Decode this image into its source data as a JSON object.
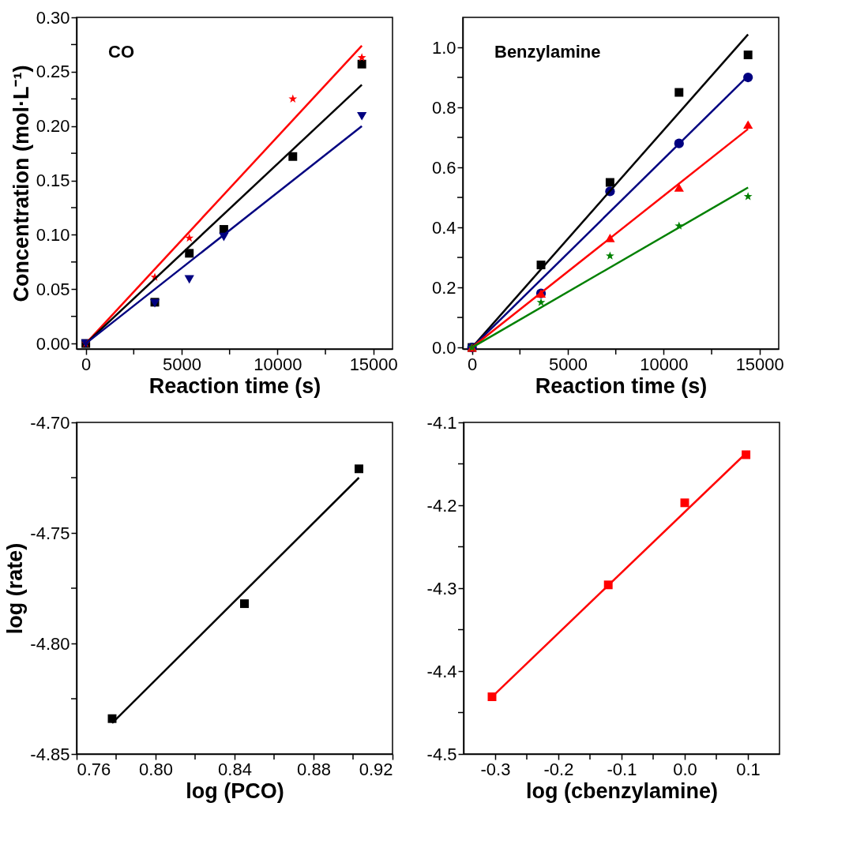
{
  "chart_data": [
    {
      "type": "scatter",
      "xlabel": "Reaction time (s)",
      "ylabel": "Concentration (mol·L⁻¹)",
      "annotations": [
        "CO"
      ],
      "xlim": [
        -480,
        16000
      ],
      "ylim": [
        -0.005,
        0.3
      ],
      "xticks": [
        0,
        {
          "value": 2500,
          "label": null
        },
        5000,
        {
          "value": 7500,
          "label": null
        },
        10000,
        {
          "value": 12500,
          "label": null
        },
        15000
      ],
      "yticks": [
        {
          "value": 0,
          "label": "0.00"
        },
        {
          "value": 0.025,
          "label": null
        },
        {
          "value": 0.05,
          "label": "0.05"
        },
        {
          "value": 0.075,
          "label": null
        },
        {
          "value": 0.1,
          "label": "0.10"
        },
        {
          "value": 0.125,
          "label": null
        },
        {
          "value": 0.15,
          "label": "0.15"
        },
        {
          "value": 0.175,
          "label": null
        },
        {
          "value": 0.2,
          "label": "0.20"
        },
        {
          "value": 0.225,
          "label": null
        },
        {
          "value": 0.25,
          "label": "0.25"
        },
        {
          "value": 0.275,
          "label": null
        },
        {
          "value": 0.3,
          "label": "0.30"
        }
      ],
      "grid": false,
      "series": [
        {
          "type": "scatter",
          "marker": "square",
          "color": "#000000",
          "x": [
            0,
            3600,
            5400,
            7200,
            10800,
            14400
          ],
          "values": [
            0,
            0.038,
            0.083,
            0.105,
            0.172,
            0.257
          ]
        },
        {
          "type": "scatter",
          "marker": "star",
          "color": "#ff0000",
          "x": [
            0,
            3600,
            5400,
            10800,
            14400
          ],
          "values": [
            0,
            0.061,
            0.097,
            0.225,
            0.263
          ]
        },
        {
          "type": "scatter",
          "marker": "triangle-down",
          "color": "#000080",
          "x": [
            0,
            3600,
            5400,
            7200,
            14400
          ],
          "values": [
            0,
            0.037,
            0.059,
            0.098,
            0.209
          ]
        },
        {
          "type": "line",
          "color": "#ff0000",
          "x": [
            0,
            14400
          ],
          "values": [
            0,
            0.274
          ]
        },
        {
          "type": "line",
          "color": "#000000",
          "x": [
            0,
            14400
          ],
          "values": [
            0,
            0.238
          ]
        },
        {
          "type": "line",
          "color": "#000080",
          "x": [
            0,
            14400
          ],
          "values": [
            0,
            0.2
          ]
        }
      ]
    },
    {
      "type": "scatter",
      "xlabel": "Reaction time (s)",
      "annotations": [
        "Benzylamine"
      ],
      "xlim": [
        -480,
        16000
      ],
      "ylim": [
        -0.005,
        1.1
      ],
      "xticks": [
        0,
        {
          "value": 2500,
          "label": null
        },
        5000,
        {
          "value": 7500,
          "label": null
        },
        10000,
        {
          "value": 12500,
          "label": null
        },
        15000
      ],
      "yticks": [
        {
          "value": 0,
          "label": "0.0"
        },
        {
          "value": 0.1,
          "label": null
        },
        {
          "value": 0.2,
          "label": "0.2"
        },
        {
          "value": 0.3,
          "label": null
        },
        {
          "value": 0.4,
          "label": "0.4"
        },
        {
          "value": 0.5,
          "label": null
        },
        {
          "value": 0.6,
          "label": "0.6"
        },
        {
          "value": 0.7,
          "label": null
        },
        {
          "value": 0.8,
          "label": "0.8"
        },
        {
          "value": 0.9,
          "label": null
        },
        {
          "value": 1.0,
          "label": "1.0"
        }
      ],
      "grid": false,
      "series": [
        {
          "type": "scatter",
          "marker": "square",
          "color": "#000000",
          "x": [
            0,
            3600,
            7200,
            10800,
            14400
          ],
          "values": [
            0,
            0.275,
            0.55,
            0.85,
            0.975
          ]
        },
        {
          "type": "scatter",
          "marker": "circle",
          "color": "#000080",
          "x": [
            0,
            3600,
            7200,
            10800,
            14400
          ],
          "values": [
            0,
            0.18,
            0.52,
            0.68,
            0.9
          ]
        },
        {
          "type": "scatter",
          "marker": "triangle",
          "color": "#ff0000",
          "x": [
            0,
            3600,
            7200,
            10800,
            14400
          ],
          "values": [
            0,
            0.18,
            0.365,
            0.533,
            0.743
          ]
        },
        {
          "type": "scatter",
          "marker": "star",
          "color": "#008000",
          "x": [
            0,
            3600,
            7200,
            10800,
            14400
          ],
          "values": [
            0,
            0.15,
            0.305,
            0.405,
            0.503
          ]
        },
        {
          "type": "line",
          "color": "#000000",
          "x": [
            0,
            14400
          ],
          "values": [
            0,
            1.043
          ]
        },
        {
          "type": "line",
          "color": "#000080",
          "x": [
            0,
            14400
          ],
          "values": [
            0,
            0.905
          ]
        },
        {
          "type": "line",
          "color": "#ff0000",
          "x": [
            0,
            14400
          ],
          "values": [
            0,
            0.728
          ]
        },
        {
          "type": "line",
          "color": "#008000",
          "x": [
            0,
            14400
          ],
          "values": [
            0,
            0.533
          ]
        }
      ]
    },
    {
      "type": "scatter",
      "xlabel": "log (PCO)",
      "ylabel": "log (rate)",
      "xlim": [
        0.76,
        0.92
      ],
      "ylim": [
        -4.85,
        -4.7
      ],
      "xticks": [
        {
          "value": 0.76,
          "label": "0.76"
        },
        {
          "value": 0.78,
          "label": null
        },
        {
          "value": 0.8,
          "label": "0.80"
        },
        {
          "value": 0.82,
          "label": null
        },
        {
          "value": 0.84,
          "label": "0.84"
        },
        {
          "value": 0.86,
          "label": null
        },
        {
          "value": 0.88,
          "label": "0.88"
        },
        {
          "value": 0.9,
          "label": null
        },
        {
          "value": 0.92,
          "label": "0.92"
        }
      ],
      "yticks": [
        {
          "value": -4.85,
          "label": "-4.85"
        },
        {
          "value": -4.825,
          "label": null
        },
        {
          "value": -4.8,
          "label": "-4.80"
        },
        {
          "value": -4.775,
          "label": null
        },
        {
          "value": -4.75,
          "label": "-4.75"
        },
        {
          "value": -4.725,
          "label": null
        },
        {
          "value": -4.7,
          "label": "-4.70"
        }
      ],
      "grid": false,
      "series": [
        {
          "type": "scatter",
          "marker": "square",
          "color": "#000000",
          "x": [
            0.778,
            0.845,
            0.903
          ],
          "values": [
            -4.834,
            -4.782,
            -4.721
          ]
        },
        {
          "type": "line",
          "color": "#000000",
          "x": [
            0.778,
            0.903
          ],
          "values": [
            -4.836,
            -4.725
          ]
        }
      ]
    },
    {
      "type": "scatter",
      "xlabel": "log (cbenzylamine)",
      "xlim": [
        -0.35,
        0.15
      ],
      "ylim": [
        -4.5,
        -4.1
      ],
      "xticks": [
        {
          "value": -0.3,
          "label": "-0.3"
        },
        {
          "value": -0.25,
          "label": null
        },
        {
          "value": -0.2,
          "label": "-0.2"
        },
        {
          "value": -0.15,
          "label": null
        },
        {
          "value": -0.1,
          "label": "-0.1"
        },
        {
          "value": -0.05,
          "label": null
        },
        {
          "value": 0,
          "label": "0.0"
        },
        {
          "value": 0.05,
          "label": null
        },
        {
          "value": 0.1,
          "label": "0.1"
        }
      ],
      "yticks": [
        {
          "value": -4.5,
          "label": "-4.5"
        },
        {
          "value": -4.45,
          "label": null
        },
        {
          "value": -4.4,
          "label": "-4.4"
        },
        {
          "value": -4.35,
          "label": null
        },
        {
          "value": -4.3,
          "label": "-4.3"
        },
        {
          "value": -4.25,
          "label": null
        },
        {
          "value": -4.2,
          "label": "-4.2"
        },
        {
          "value": -4.15,
          "label": null
        },
        {
          "value": -4.1,
          "label": "-4.1"
        }
      ],
      "grid": false,
      "series": [
        {
          "type": "scatter",
          "marker": "square",
          "color": "#ff0000",
          "x": [
            -0.305,
            -0.121,
            0.0,
            0.097
          ],
          "values": [
            -4.431,
            -4.296,
            -4.197,
            -4.139
          ]
        },
        {
          "type": "line",
          "color": "#ff0000",
          "x": [
            -0.305,
            0.1
          ],
          "values": [
            -4.431,
            -4.135
          ]
        }
      ]
    }
  ]
}
